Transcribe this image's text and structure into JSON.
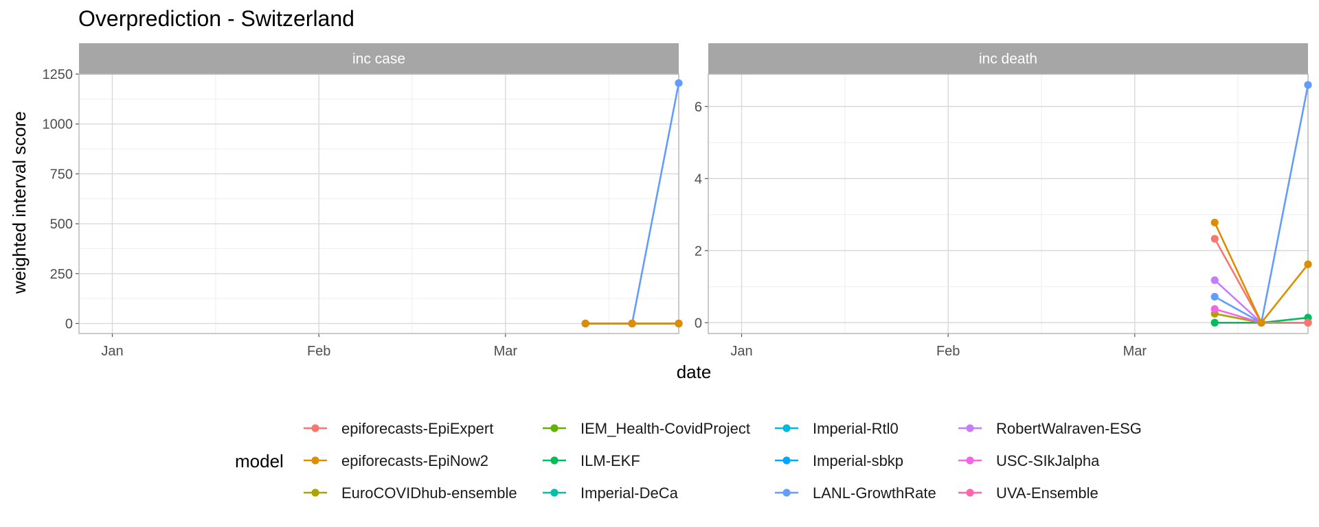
{
  "chart_data": {
    "type": "line",
    "title": "Overprediction - Switzerland",
    "xlabel": "date",
    "ylabel": "weighted interval score",
    "x_ticks": [
      "Jan",
      "Feb",
      "Mar"
    ],
    "x_tick_dates": [
      "2021-01-01",
      "2021-02-01",
      "2021-03-01"
    ],
    "x_range": [
      "2020-12-27",
      "2021-03-27"
    ],
    "grid": true,
    "legend": {
      "title": "model",
      "position": "bottom",
      "entries": [
        {
          "name": "epiforecasts-EpiExpert",
          "color": "#F8766D"
        },
        {
          "name": "epiforecasts-EpiNow2",
          "color": "#DB8E00"
        },
        {
          "name": "EuroCOVIDhub-ensemble",
          "color": "#AEA200"
        },
        {
          "name": "IEM_Health-CovidProject",
          "color": "#64B200"
        },
        {
          "name": "ILM-EKF",
          "color": "#00BD5C"
        },
        {
          "name": "Imperial-DeCa",
          "color": "#00C1A7"
        },
        {
          "name": "Imperial-Rtl0",
          "color": "#00BADE"
        },
        {
          "name": "Imperial-sbkp",
          "color": "#00A6FF"
        },
        {
          "name": "LANL-GrowthRate",
          "color": "#619CFF"
        },
        {
          "name": "RobertWalraven-ESG",
          "color": "#C77CFF"
        },
        {
          "name": "USC-SIkJalpha",
          "color": "#F564E3"
        },
        {
          "name": "UVA-Ensemble",
          "color": "#FF64B0"
        }
      ]
    },
    "panels": [
      {
        "strip": "inc case",
        "ylim": [
          -50,
          1250
        ],
        "y_ticks": [
          0,
          250,
          500,
          750,
          1000,
          1250
        ],
        "series": [
          {
            "name": "epiforecasts-EpiExpert",
            "color": "#F8766D",
            "x": [
              "2021-03-13",
              "2021-03-20",
              "2021-03-27"
            ],
            "y": [
              0,
              0,
              0
            ]
          },
          {
            "name": "EuroCOVIDhub-ensemble",
            "color": "#AEA200",
            "x": [
              "2021-03-13",
              "2021-03-20",
              "2021-03-27"
            ],
            "y": [
              0,
              0,
              0
            ]
          },
          {
            "name": "ILM-EKF",
            "color": "#00BD5C",
            "x": [
              "2021-03-13",
              "2021-03-20",
              "2021-03-27"
            ],
            "y": [
              0,
              0,
              0
            ]
          },
          {
            "name": "LANL-GrowthRate",
            "color": "#619CFF",
            "x": [
              "2021-03-13",
              "2021-03-20",
              "2021-03-27"
            ],
            "y": [
              0,
              0,
              1205
            ]
          },
          {
            "name": "USC-SIkJalpha",
            "color": "#F564E3",
            "x": [
              "2021-03-13",
              "2021-03-20",
              "2021-03-27"
            ],
            "y": [
              0,
              0,
              0
            ]
          },
          {
            "name": "epiforecasts-EpiNow2",
            "color": "#DB8E00",
            "x": [
              "2021-03-13",
              "2021-03-20",
              "2021-03-27"
            ],
            "y": [
              0,
              0,
              0
            ]
          }
        ]
      },
      {
        "strip": "inc death",
        "ylim": [
          -0.3,
          6.9
        ],
        "y_ticks": [
          0,
          2,
          4,
          6
        ],
        "series": [
          {
            "name": "ILM-EKF",
            "color": "#00BD5C",
            "x": [
              "2021-03-13",
              "2021-03-20",
              "2021-03-27"
            ],
            "y": [
              0,
              0,
              0.14
            ]
          },
          {
            "name": "EuroCOVIDhub-ensemble",
            "color": "#AEA200",
            "x": [
              "2021-03-13",
              "2021-03-20",
              "2021-03-27"
            ],
            "y": [
              0.25,
              0,
              0
            ]
          },
          {
            "name": "USC-SIkJalpha",
            "color": "#F564E3",
            "x": [
              "2021-03-13",
              "2021-03-20",
              "2021-03-27"
            ],
            "y": [
              0.38,
              0,
              0
            ]
          },
          {
            "name": "LANL-GrowthRate",
            "color": "#619CFF",
            "x": [
              "2021-03-13",
              "2021-03-20",
              "2021-03-27"
            ],
            "y": [
              0.72,
              0,
              6.6
            ]
          },
          {
            "name": "RobertWalraven-ESG",
            "color": "#C77CFF",
            "x": [
              "2021-03-13",
              "2021-03-20",
              "2021-03-27"
            ],
            "y": [
              1.18,
              0,
              0
            ]
          },
          {
            "name": "epiforecasts-EpiExpert",
            "color": "#F8766D",
            "x": [
              "2021-03-13",
              "2021-03-20",
              "2021-03-27"
            ],
            "y": [
              2.33,
              0,
              0
            ]
          },
          {
            "name": "epiforecasts-EpiNow2",
            "color": "#DB8E00",
            "x": [
              "2021-03-13",
              "2021-03-20",
              "2021-03-27"
            ],
            "y": [
              2.78,
              0,
              1.62
            ]
          }
        ]
      }
    ]
  }
}
